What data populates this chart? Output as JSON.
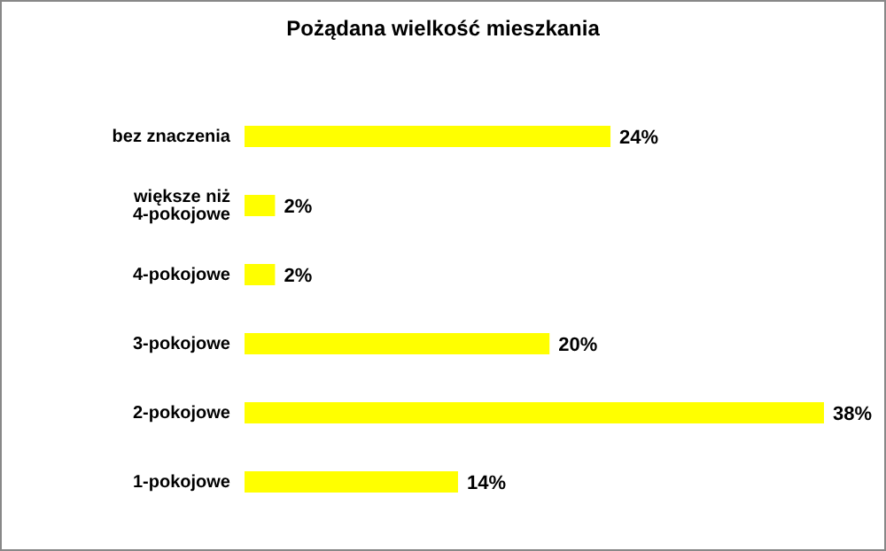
{
  "chart_data": {
    "type": "bar",
    "orientation": "horizontal",
    "title": "Pożądana wielkość mieszkania",
    "categories": [
      "bez znaczenia",
      "większe niż 4-pokojowe",
      "4-pokojowe",
      "3-pokojowe",
      "2-pokojowe",
      "1-pokojowe"
    ],
    "values": [
      24,
      2,
      2,
      20,
      38,
      14
    ],
    "color": "#ffff00",
    "value_labels": [
      "24%",
      "2%",
      "2%",
      "20%",
      "38%",
      "14%"
    ],
    "grid": false,
    "legend": false
  }
}
